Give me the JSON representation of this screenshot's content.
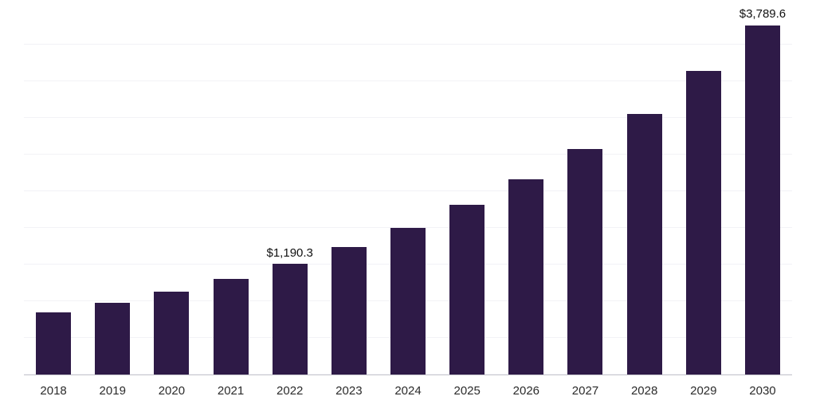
{
  "chart_data": {
    "type": "bar",
    "title": "",
    "xlabel": "",
    "ylabel": "",
    "categories": [
      "2018",
      "2019",
      "2020",
      "2021",
      "2022",
      "2023",
      "2024",
      "2025",
      "2026",
      "2027",
      "2028",
      "2029",
      "2030"
    ],
    "values": [
      665,
      770,
      890,
      1030,
      1190.3,
      1372,
      1580,
      1822,
      2100,
      2425,
      2800,
      3262,
      3789.6
    ],
    "data_labels": [
      "",
      "",
      "",
      "",
      "$1,190.3",
      "",
      "",
      "",
      "",
      "",
      "",
      "",
      "$3,789.6"
    ],
    "ylim": [
      0,
      3940
    ],
    "legend": "none",
    "grid": "horizontal-faint",
    "colors": {
      "bar": "#2E1A47",
      "axis_line": "#c6c6cd",
      "gridline": "#f2f2f6",
      "value_label": "#111111",
      "tick_label": "#2b2b2b",
      "background": "#ffffff"
    }
  }
}
